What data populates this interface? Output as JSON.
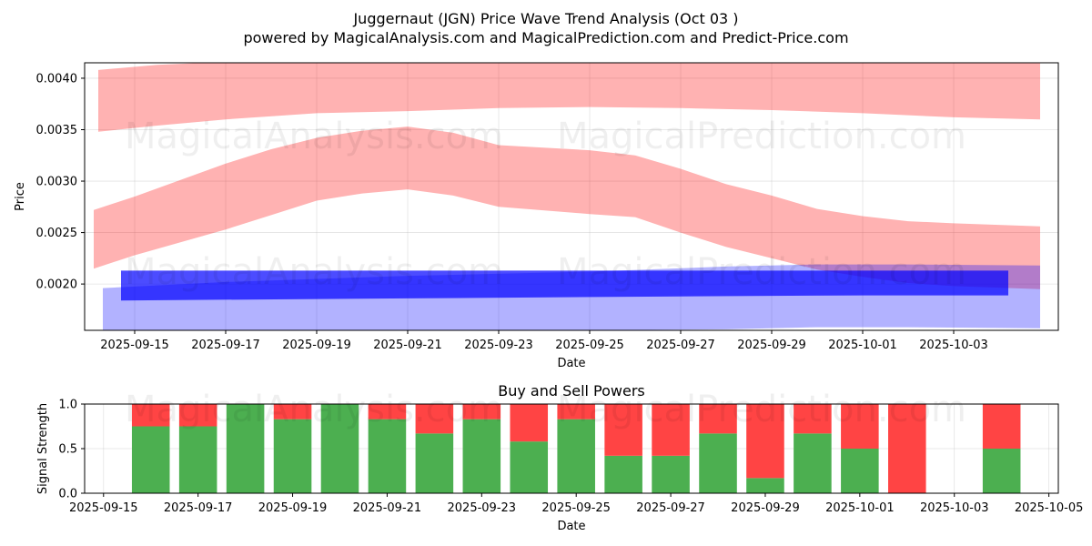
{
  "title_line1": "Juggernaut (JGN) Price Wave Trend Analysis (Oct 03 )",
  "title_line2": "powered by MagicalAnalysis.com and MagicalPrediction.com and Predict-Price.com",
  "watermarks": {
    "upper_row1_left": "MagicalAnalysis.com",
    "upper_row1_right": "MagicalPrediction.com",
    "upper_row2_left": "MagicalAnalysis.com",
    "upper_row2_right": "MagicalPrediction.com",
    "lower_left": "MagicalAnalysis.com",
    "lower_right": "MagicalPrediction.com"
  },
  "colors": {
    "red_band": "#ff0000",
    "blue_band": "#0000ff",
    "buy": "#4caf50",
    "sell": "#ff4444"
  },
  "chart_data": [
    {
      "type": "area",
      "name": "price-wave",
      "title": "",
      "xlabel": "Date",
      "ylabel": "Price",
      "x_ticks": [
        "2025-09-15",
        "2025-09-17",
        "2025-09-19",
        "2025-09-21",
        "2025-09-23",
        "2025-09-25",
        "2025-09-27",
        "2025-09-29",
        "2025-10-01",
        "2025-10-03"
      ],
      "y_ticks": [
        "0.0020",
        "0.0025",
        "0.0030",
        "0.0035",
        "0.0040"
      ],
      "xlim": [
        "2025-09-13.9",
        "2025-10-05.3"
      ],
      "ylim": [
        0.00155,
        0.00415
      ],
      "series": [
        {
          "name": "red-upper-band",
          "color": "#ff0000",
          "x": [
            "2025-09-14.2",
            "2025-09-15.5",
            "2025-09-17",
            "2025-09-19",
            "2025-09-21",
            "2025-09-23",
            "2025-09-25",
            "2025-09-27",
            "2025-09-29",
            "2025-10-01",
            "2025-10-03",
            "2025-10-04.9"
          ],
          "upper": [
            0.00408,
            0.00413,
            0.00416,
            0.00418,
            0.00419,
            0.0042,
            0.0042,
            0.00419,
            0.00418,
            0.00418,
            0.00418,
            0.00418
          ],
          "lower": [
            0.00348,
            0.00354,
            0.0036,
            0.00366,
            0.00368,
            0.00371,
            0.00372,
            0.00371,
            0.00369,
            0.00366,
            0.00362,
            0.0036
          ]
        },
        {
          "name": "red-middle-band",
          "color": "#ff0000",
          "x": [
            "2025-09-14.1",
            "2025-09-15",
            "2025-09-17",
            "2025-09-18",
            "2025-09-19",
            "2025-09-20",
            "2025-09-21",
            "2025-09-22",
            "2025-09-23",
            "2025-09-25",
            "2025-09-26",
            "2025-09-27",
            "2025-09-28",
            "2025-09-29",
            "2025-09-30",
            "2025-10-01",
            "2025-10-02",
            "2025-10-03",
            "2025-10-04.9"
          ],
          "upper": [
            0.00272,
            0.00285,
            0.00317,
            0.00331,
            0.00342,
            0.00349,
            0.00353,
            0.00347,
            0.00335,
            0.0033,
            0.00325,
            0.00312,
            0.00297,
            0.00286,
            0.00273,
            0.00266,
            0.00261,
            0.00259,
            0.00256
          ],
          "lower": [
            0.00215,
            0.00228,
            0.00253,
            0.00267,
            0.00281,
            0.00288,
            0.00292,
            0.00286,
            0.00275,
            0.00268,
            0.00265,
            0.0025,
            0.00236,
            0.00225,
            0.00214,
            0.00207,
            0.00201,
            0.00198,
            0.00195
          ]
        },
        {
          "name": "blue-wide-band",
          "color": "#0000ff",
          "x": [
            "2025-09-14.3",
            "2025-09-17",
            "2025-09-21",
            "2025-09-25",
            "2025-09-28",
            "2025-09-30",
            "2025-10-02",
            "2025-10-04.9"
          ],
          "upper": [
            0.00196,
            0.00202,
            0.00208,
            0.00212,
            0.00217,
            0.00219,
            0.00219,
            0.00218
          ],
          "lower": [
            0.00155,
            0.00155,
            0.00155,
            0.00155,
            0.00156,
            0.00158,
            0.00158,
            0.00157
          ]
        },
        {
          "name": "blue-narrow-band",
          "color": "#0000ff",
          "x": [
            "2025-09-14.7",
            "2025-09-21",
            "2025-09-27",
            "2025-10-01",
            "2025-10-04.2"
          ],
          "upper": [
            0.00213,
            0.00213,
            0.00213,
            0.00213,
            0.00213
          ],
          "lower": [
            0.00184,
            0.00186,
            0.00188,
            0.00189,
            0.00189
          ]
        }
      ]
    },
    {
      "type": "bar",
      "name": "buy-sell-powers",
      "title": "Buy and Sell Powers",
      "xlabel": "Date",
      "ylabel": "Signal Strength",
      "x_ticks": [
        "2025-09-15",
        "2025-09-17",
        "2025-09-19",
        "2025-09-21",
        "2025-09-23",
        "2025-09-25",
        "2025-09-27",
        "2025-09-29",
        "2025-10-01",
        "2025-10-03",
        "2025-10-05"
      ],
      "y_ticks": [
        "0.0",
        "0.5",
        "1.0"
      ],
      "ylim": [
        0,
        1
      ],
      "categories": [
        "2025-09-16",
        "2025-09-17",
        "2025-09-18",
        "2025-09-19",
        "2025-09-20",
        "2025-09-21",
        "2025-09-22",
        "2025-09-23",
        "2025-09-24",
        "2025-09-25",
        "2025-09-26",
        "2025-09-27",
        "2025-09-28",
        "2025-09-29",
        "2025-09-30",
        "2025-10-01",
        "2025-10-02",
        "2025-10-03",
        "2025-10-04"
      ],
      "series": [
        {
          "name": "Buy",
          "color": "#4caf50",
          "values": [
            0.75,
            0.75,
            1.0,
            0.83,
            1.0,
            0.83,
            0.67,
            0.83,
            0.58,
            0.83,
            0.42,
            0.42,
            0.67,
            0.17,
            0.67,
            0.5,
            0.0,
            0.0,
            0.5
          ]
        },
        {
          "name": "Sell",
          "color": "#ff4444",
          "values": [
            0.25,
            0.25,
            0.0,
            0.17,
            0.0,
            0.17,
            0.33,
            0.17,
            0.42,
            0.17,
            0.58,
            0.58,
            0.33,
            0.83,
            0.33,
            0.5,
            1.0,
            0.0,
            0.5
          ]
        }
      ]
    }
  ]
}
